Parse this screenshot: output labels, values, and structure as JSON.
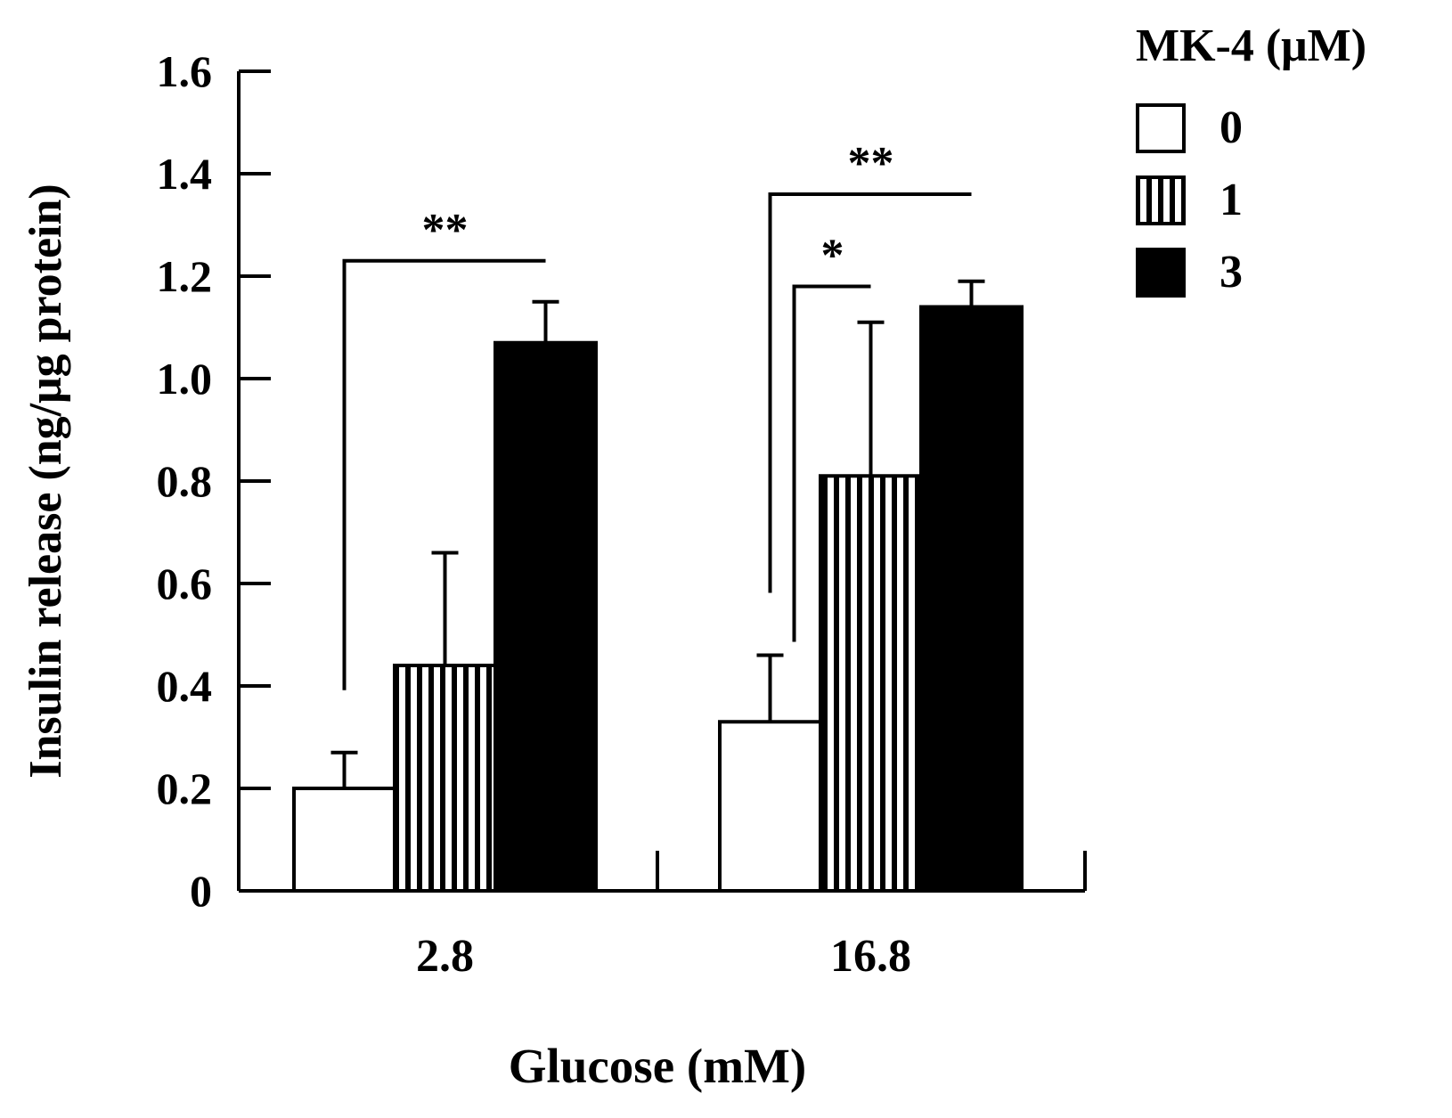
{
  "chart_data": {
    "type": "bar",
    "title": "",
    "xlabel": "Glucose (mM)",
    "ylabel": "Insulin release (ng/μg protein)",
    "ylim": [
      0,
      1.6
    ],
    "yticks": [
      "0",
      "0.2",
      "0.4",
      "0.6",
      "0.8",
      "1.0",
      "1.2",
      "1.4",
      "1.6"
    ],
    "categories": [
      "2.8",
      "16.8"
    ],
    "legend": {
      "title": "MK-4 (μM)",
      "placement": "top-right",
      "entries": [
        "0",
        "1",
        "3"
      ]
    },
    "series": [
      {
        "name": "0",
        "pattern": "white",
        "values": [
          0.2,
          0.33
        ],
        "errors": [
          0.07,
          0.13
        ]
      },
      {
        "name": "1",
        "pattern": "vertical-stripes",
        "values": [
          0.44,
          0.81
        ],
        "errors": [
          0.22,
          0.3
        ]
      },
      {
        "name": "3",
        "pattern": "black",
        "values": [
          1.07,
          1.14
        ],
        "errors": [
          0.08,
          0.05
        ]
      }
    ],
    "significance": [
      {
        "group": 0,
        "from": 0,
        "to": 2,
        "label": "**",
        "level": 1.23
      },
      {
        "group": 1,
        "from": 0,
        "to": 1,
        "label": "*",
        "level": 1.18
      },
      {
        "group": 1,
        "from": 0,
        "to": 2,
        "label": "**",
        "level": 1.36
      }
    ]
  }
}
